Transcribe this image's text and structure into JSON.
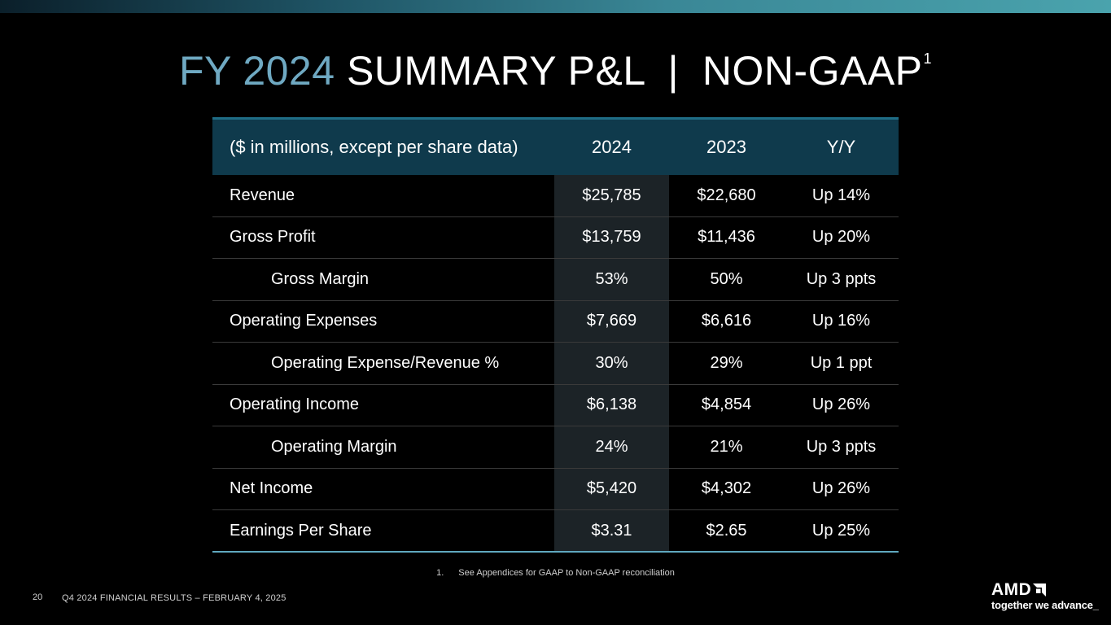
{
  "slide": {
    "title_year": "FY 2024",
    "title_main": "SUMMARY P&L  |  NON-GAAP",
    "title_sup": "1",
    "page_number": "20",
    "footer": "Q4 2024 FINANCIAL RESULTS – FEBRUARY 4, 2025",
    "footnote_number": "1.",
    "footnote_text": "See Appendices for GAAP to Non-GAAP reconciliation",
    "logo_word": "AMD",
    "logo_tagline": "together we advance_"
  },
  "table": {
    "headers": [
      "($ in millions, except per share data)",
      "2024",
      "2023",
      "Y/Y"
    ],
    "rows": [
      {
        "label": "Revenue",
        "v2024": "$25,785",
        "v2023": "$22,680",
        "yy": "Up 14%"
      },
      {
        "label": "Gross Profit",
        "v2024": "$13,759",
        "v2023": "$11,436",
        "yy": "Up 20%"
      },
      {
        "label": "Gross Margin",
        "v2024": "53%",
        "v2023": "50%",
        "yy": "Up 3 ppts"
      },
      {
        "label": "Operating Expenses",
        "v2024": "$7,669",
        "v2023": "$6,616",
        "yy": "Up 16%"
      },
      {
        "label": "Operating Expense/Revenue %",
        "v2024": "30%",
        "v2023": "29%",
        "yy": "Up 1 ppt"
      },
      {
        "label": "Operating Income",
        "v2024": "$6,138",
        "v2023": "$4,854",
        "yy": "Up 26%"
      },
      {
        "label": "Operating Margin",
        "v2024": "24%",
        "v2023": "21%",
        "yy": "Up 3 ppts"
      },
      {
        "label": "Net Income",
        "v2024": "$5,420",
        "v2023": "$4,302",
        "yy": "Up 26%"
      },
      {
        "label": "Earnings Per Share",
        "v2024": "$3.31",
        "v2023": "$2.65",
        "yy": "Up 25%"
      }
    ]
  },
  "colors": {
    "accent_year": "#6fa9c2",
    "header_bg": "#0f3a4c",
    "highlight_col": "#1c2327",
    "bottom_rule": "#5fa8bf"
  }
}
